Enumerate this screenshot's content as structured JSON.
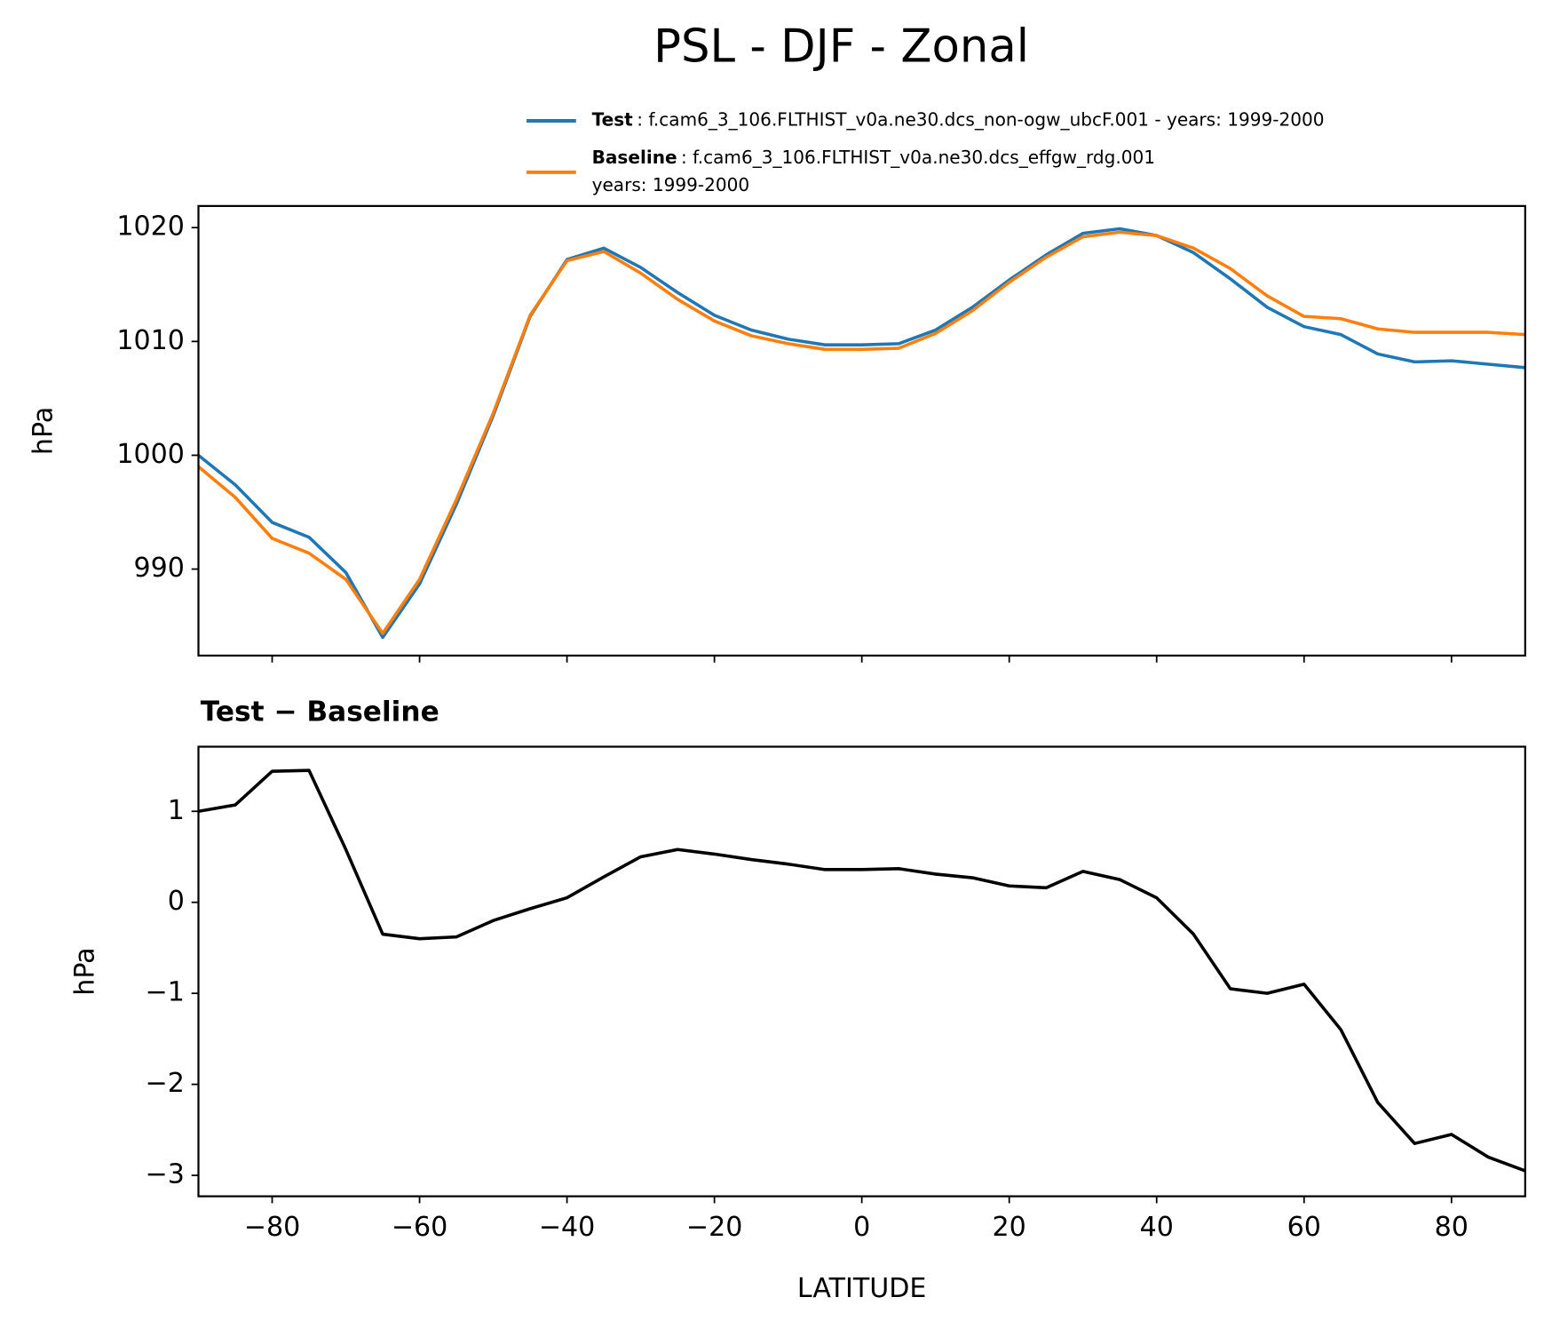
{
  "title": "PSL - DJF - Zonal",
  "chart_data": [
    {
      "type": "line",
      "ylabel": "hPa",
      "x": [
        -90,
        -85,
        -80,
        -75,
        -70,
        -65,
        -60,
        -55,
        -50,
        -45,
        -40,
        -35,
        -30,
        -25,
        -20,
        -15,
        -10,
        -5,
        0,
        5,
        10,
        15,
        20,
        25,
        30,
        35,
        40,
        45,
        50,
        55,
        60,
        65,
        70,
        75,
        80,
        85,
        90
      ],
      "series": [
        {
          "name": "Test",
          "description": ": f.cam6_3_106.FLTHIST_v0a.ne30.dcs_non-ogw_ubcF.001 - years: 1999-2000",
          "color": "#1f77b4",
          "values": [
            1000.0,
            997.4,
            994.1,
            992.8,
            989.7,
            984.0,
            988.7,
            995.7,
            1003.5,
            1012.2,
            1017.2,
            1018.2,
            1016.5,
            1014.3,
            1012.3,
            1011.0,
            1010.2,
            1009.7,
            1009.7,
            1009.8,
            1011.0,
            1013.0,
            1015.4,
            1017.6,
            1019.5,
            1019.9,
            1019.3,
            1017.8,
            1015.5,
            1013.0,
            1011.3,
            1010.6,
            1008.9,
            1008.2,
            1008.3,
            1008.0,
            1007.7
          ]
        },
        {
          "name": "Baseline",
          "description": ": f.cam6_3_106.FLTHIST_v0a.ne30.dcs_effgw_rdg.001",
          "description2": "years: 1999-2000",
          "color": "#ff7f0e",
          "values": [
            999.0,
            996.3,
            992.7,
            991.4,
            989.1,
            984.35,
            989.1,
            996.1,
            1003.7,
            1012.3,
            1017.1,
            1017.9,
            1016.0,
            1013.7,
            1011.8,
            1010.5,
            1009.8,
            1009.3,
            1009.3,
            1009.4,
            1010.7,
            1012.7,
            1015.2,
            1017.4,
            1019.2,
            1019.6,
            1019.3,
            1018.2,
            1016.4,
            1014.0,
            1012.2,
            1012.0,
            1011.1,
            1010.8,
            1010.8,
            1010.8,
            1010.6
          ]
        }
      ],
      "xlim": [
        -90,
        90
      ],
      "xticks": [
        -80,
        -60,
        -40,
        -20,
        0,
        20,
        40,
        60,
        80
      ],
      "ylim": [
        982.4,
        1021.9
      ],
      "yticks": [
        990,
        1000,
        1010,
        1020
      ],
      "legend": "upper right"
    },
    {
      "type": "line",
      "title": "Test − Baseline",
      "ylabel": "hPa",
      "xlabel": "LATITUDE",
      "x": [
        -90,
        -85,
        -80,
        -75,
        -70,
        -65,
        -60,
        -55,
        -50,
        -45,
        -40,
        -35,
        -30,
        -25,
        -20,
        -15,
        -10,
        -5,
        0,
        5,
        10,
        15,
        20,
        25,
        30,
        35,
        40,
        45,
        50,
        55,
        60,
        65,
        70,
        75,
        80,
        85,
        90
      ],
      "series": [
        {
          "color": "#000000",
          "values": [
            1.0,
            1.07,
            1.44,
            1.45,
            0.58,
            -0.35,
            -0.4,
            -0.38,
            -0.2,
            -0.07,
            0.05,
            0.28,
            0.5,
            0.58,
            0.53,
            0.47,
            0.42,
            0.36,
            0.36,
            0.37,
            0.31,
            0.27,
            0.18,
            0.16,
            0.34,
            0.25,
            0.05,
            -0.35,
            -0.95,
            -1.0,
            -0.9,
            -1.4,
            -2.2,
            -2.65,
            -2.55,
            -2.8,
            -2.95
          ]
        }
      ],
      "xlim": [
        -90,
        90
      ],
      "xticks": [
        {
          "value": -80,
          "label": "−80"
        },
        {
          "value": -60,
          "label": "−60"
        },
        {
          "value": -40,
          "label": "−40"
        },
        {
          "value": -20,
          "label": "−20"
        },
        0,
        20,
        40,
        60,
        80
      ],
      "ylim": [
        -3.23,
        1.71
      ],
      "yticks": [
        {
          "value": -3,
          "label": "−3"
        },
        {
          "value": -2,
          "label": "−2"
        },
        {
          "value": -1,
          "label": "−1"
        },
        0,
        1
      ]
    }
  ]
}
